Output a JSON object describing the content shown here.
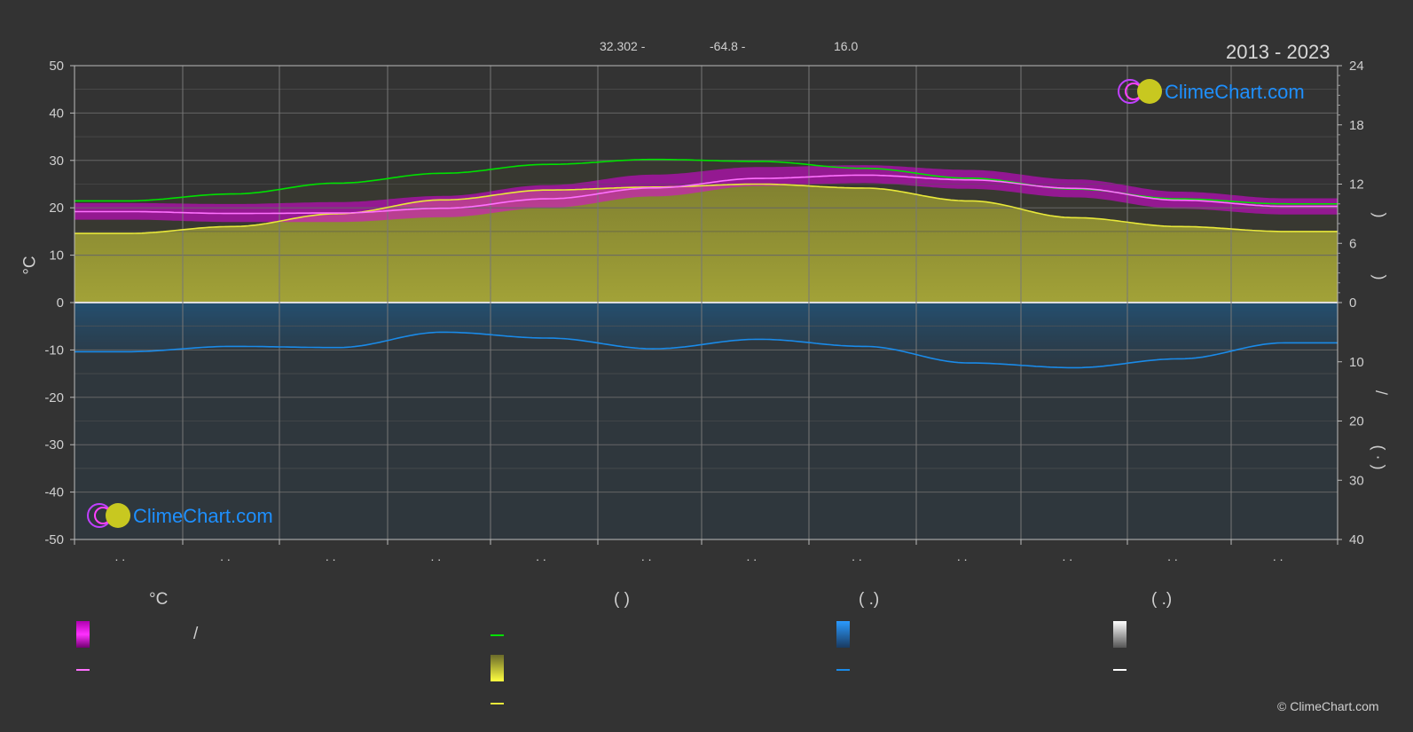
{
  "header": {
    "lat": "32.302 -",
    "lon": "-64.8 -",
    "elev": "16.0",
    "years": "2013 - 2023"
  },
  "logo": {
    "text": "ClimeChart.com"
  },
  "copyright": "© ClimeChart.com",
  "colors": {
    "background": "#333333",
    "daylight": "#00e000",
    "sunshine": "#e8e83a",
    "temp_avg": "#ff70ff",
    "temp_range": "#e000e0",
    "precip": "#1a8ae8",
    "grid": "#666666"
  },
  "legend": {
    "col1_head": "°C",
    "col1_sep": "/",
    "col2_head": "(          )",
    "col3_head": "(    .)",
    "col4_head": "(    .)"
  },
  "axis_glyphs": {
    "right_top_1": ")",
    "right_top_2": ")",
    "right_bottom_slash": "/",
    "right_bottom_paren": "( ·  )"
  },
  "chart_data": {
    "type": "line",
    "months": [
      "",
      "",
      "",
      "",
      "",
      "",
      "",
      "",
      "",
      "",
      "",
      ""
    ],
    "month_tick_labels": [
      ". .",
      ". .",
      ". .",
      ". .",
      ". .",
      ". .",
      ". .",
      ". .",
      ". .",
      ". .",
      ". .",
      ". ."
    ],
    "ylabel_left": "°C",
    "yticks_left": [
      50,
      40,
      30,
      20,
      10,
      0,
      -10,
      -20,
      -30,
      -40,
      -50
    ],
    "ylim_left": [
      -50,
      50
    ],
    "yticks_right_top": [
      24,
      18,
      12,
      6,
      0
    ],
    "ylim_right_top_hours": [
      0,
      24
    ],
    "yticks_right_bottom": [
      10,
      20,
      30,
      40
    ],
    "ylim_right_bottom_mm": [
      0,
      40
    ],
    "series": [
      {
        "key": "daylight",
        "axis": "hours",
        "values": [
          10.3,
          11.0,
          12.1,
          13.1,
          14.0,
          14.5,
          14.3,
          13.6,
          12.6,
          11.5,
          10.5,
          10.0
        ]
      },
      {
        "key": "sunshine",
        "axis": "hours",
        "values": [
          7.0,
          7.7,
          9.0,
          10.4,
          11.4,
          11.7,
          12.0,
          11.6,
          10.3,
          8.6,
          7.7,
          7.2
        ]
      },
      {
        "key": "temp_avg",
        "axis": "temp",
        "values": [
          19.2,
          18.8,
          18.9,
          19.9,
          21.9,
          24.2,
          26.2,
          26.9,
          25.9,
          24.1,
          21.6,
          20.3
        ]
      },
      {
        "key": "temp_range_max",
        "axis": "temp",
        "values": [
          21.0,
          20.8,
          21.2,
          22.5,
          24.8,
          27.0,
          28.6,
          29.0,
          28.0,
          26.0,
          23.4,
          22.0
        ]
      },
      {
        "key": "temp_range_min",
        "axis": "temp",
        "values": [
          17.5,
          17.0,
          17.0,
          18.0,
          20.0,
          22.4,
          24.6,
          25.2,
          24.0,
          22.2,
          19.8,
          18.6
        ]
      },
      {
        "key": "precip",
        "axis": "mm",
        "values": [
          8.3,
          7.4,
          7.6,
          5.0,
          6.0,
          7.8,
          6.2,
          7.4,
          10.2,
          11.0,
          9.5,
          6.8
        ]
      }
    ]
  }
}
